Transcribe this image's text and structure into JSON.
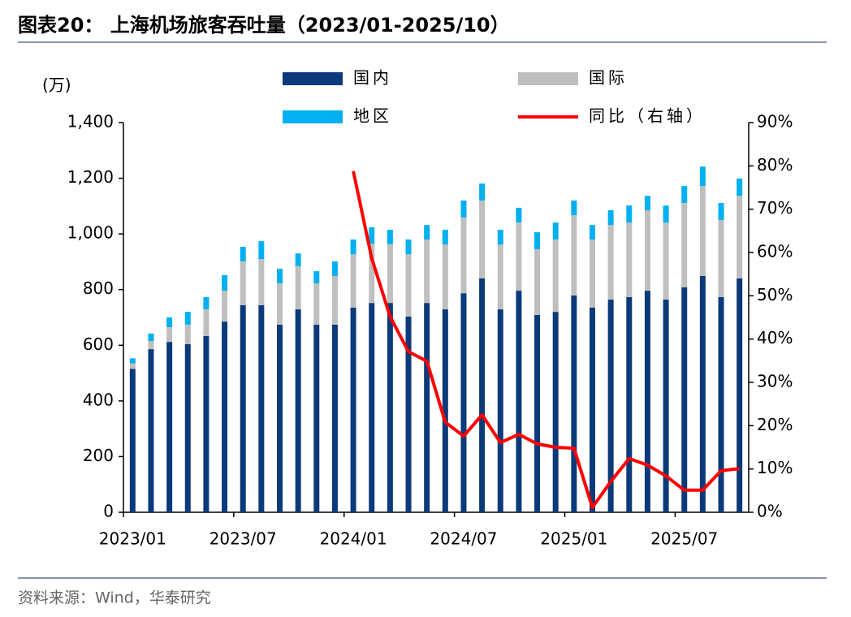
{
  "chart_data": {
    "type": "stacked_bar_line",
    "title": "图表20：  上海机场旅客吞吐量（2023/01-2025/10）",
    "y_axis_label": "(万)",
    "source": "资料来源：Wind，华泰研究",
    "categories": [
      "2023/01",
      null,
      null,
      null,
      null,
      null,
      "2023/07",
      null,
      null,
      null,
      null,
      null,
      "2024/01",
      null,
      null,
      null,
      null,
      null,
      "2024/07",
      null,
      null,
      null,
      null,
      null,
      "2025/01",
      null,
      null,
      null,
      null,
      null,
      "2025/07",
      null,
      null,
      null
    ],
    "series": [
      {
        "name": "国内",
        "color": "#0b3a7a",
        "values": [
          515,
          586,
          612,
          604,
          633,
          685,
          744,
          744,
          674,
          729,
          674,
          674,
          735,
          752,
          752,
          703,
          752,
          729,
          787,
          840,
          729,
          796,
          709,
          720,
          779,
          735,
          764,
          773,
          796,
          764,
          808,
          849,
          773,
          840
        ]
      },
      {
        "name": "国际",
        "color": "#bfbfbf",
        "values": [
          20,
          29,
          53,
          70,
          96,
          111,
          157,
          166,
          148,
          155,
          148,
          175,
          192,
          213,
          211,
          224,
          228,
          233,
          272,
          280,
          233,
          245,
          236,
          260,
          288,
          245,
          268,
          268,
          289,
          277,
          303,
          323,
          277,
          297
        ]
      },
      {
        "name": "地区",
        "color": "#00b0f0",
        "values": [
          18,
          27,
          35,
          46,
          44,
          56,
          53,
          64,
          53,
          46,
          44,
          52,
          53,
          59,
          52,
          53,
          52,
          53,
          61,
          61,
          53,
          53,
          61,
          61,
          53,
          52,
          53,
          61,
          52,
          61,
          61,
          70,
          61,
          62
        ]
      },
      {
        "name": "同比（右轴）",
        "color": "#ff0000",
        "axis": "y2",
        "values": [
          null,
          null,
          null,
          null,
          null,
          null,
          null,
          null,
          null,
          null,
          null,
          null,
          78.8,
          58.7,
          45.2,
          37.1,
          34.9,
          20.8,
          17.6,
          22.5,
          16.1,
          18.0,
          15.8,
          15.0,
          14.8,
          1.1,
          7.1,
          12.4,
          10.9,
          8.4,
          5.1,
          5.1,
          9.6,
          10.1
        ]
      }
    ],
    "ylim": [
      0,
      1400
    ],
    "yticks": [
      0,
      200,
      400,
      600,
      800,
      {
        "value": 1000,
        "label": "1,000"
      },
      {
        "value": 1200,
        "label": "1,200"
      },
      {
        "value": 1400,
        "label": "1,400"
      }
    ],
    "y2lim": [
      0,
      90
    ],
    "y2ticks": [
      {
        "value": 0,
        "label": "0%"
      },
      {
        "value": 10,
        "label": "10%"
      },
      {
        "value": 20,
        "label": "20%"
      },
      {
        "value": 30,
        "label": "30%"
      },
      {
        "value": 40,
        "label": "40%"
      },
      {
        "value": 50,
        "label": "50%"
      },
      {
        "value": 60,
        "label": "60%"
      },
      {
        "value": 70,
        "label": "70%"
      },
      {
        "value": 80,
        "label": "80%"
      },
      {
        "value": 90,
        "label": "90%"
      }
    ],
    "grid": false,
    "legend": "top"
  }
}
